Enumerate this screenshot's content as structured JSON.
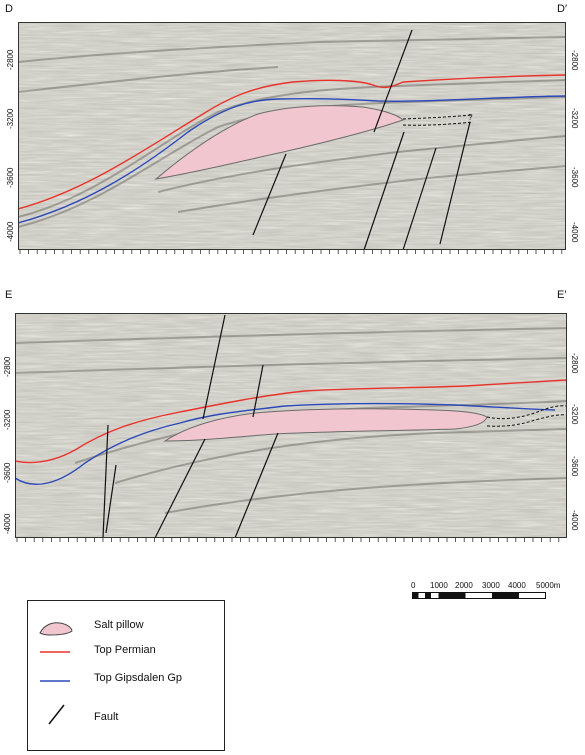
{
  "sections": [
    {
      "left_label": "D",
      "right_label": "D′",
      "depth_ticks": [
        "-2800",
        "-3200",
        "-3600",
        "-4000"
      ],
      "right_depth_ticks": [
        "-2800",
        "-3200",
        "-3600",
        "-4000"
      ],
      "question_mark": "?"
    },
    {
      "left_label": "E",
      "right_label": "E′",
      "depth_ticks": [
        "-2800",
        "-3200",
        "-3600",
        "-4000"
      ],
      "right_depth_ticks": [
        "-2800",
        "-3200",
        "-3600",
        "-4000"
      ]
    }
  ],
  "scale_bar": {
    "labels": [
      "0",
      "1000",
      "2000",
      "3000",
      "4000",
      "5000m"
    ]
  },
  "legend": {
    "items": [
      {
        "label": "Salt pillow",
        "symbol": "salt-pillow",
        "color": "#f2c6cf"
      },
      {
        "label": "Top Permian",
        "symbol": "line",
        "color": "#e8322a"
      },
      {
        "label": "Top Gipsdalen Gp",
        "symbol": "line",
        "color": "#2b48b8"
      },
      {
        "label": "Fault",
        "symbol": "fault",
        "color": "#111111"
      }
    ]
  },
  "colors": {
    "top_permian": "#e8322a",
    "top_gipsdalen": "#2b48b8",
    "salt_fill": "#f2c6cf",
    "salt_stroke": "#6a6a6a",
    "seismic_bg": "#c9c7bf"
  }
}
